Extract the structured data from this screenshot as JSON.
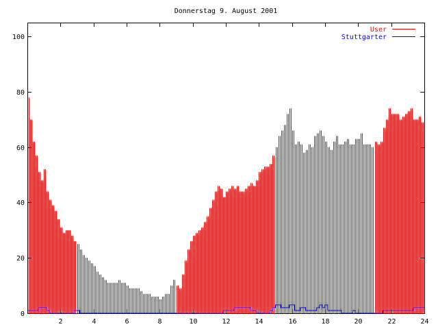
{
  "chart_data": {
    "type": "bar",
    "title": "Donnerstag 9. August 2001",
    "xlabel": "",
    "ylabel": "",
    "xlim": [
      0,
      24
    ],
    "ylim": [
      0,
      105
    ],
    "grid": false,
    "legend_position": "top-right",
    "x_ticks": [
      "2",
      "4",
      "6",
      "8",
      "10",
      "12",
      "14",
      "16",
      "18",
      "20",
      "22",
      "24"
    ],
    "y_ticks": [
      "0",
      "20",
      "40",
      "60",
      "80",
      "100"
    ],
    "x_step_hours": 0.16667,
    "series": [
      {
        "name": "User",
        "style": "impulses",
        "color": "#ff0000",
        "values": [
          78,
          70,
          62,
          57,
          51,
          48,
          52,
          44,
          41,
          39,
          37,
          34,
          31,
          29,
          30,
          30,
          28,
          26,
          25,
          23,
          21,
          20,
          19,
          18,
          17,
          15,
          14,
          13,
          12,
          11,
          11,
          11,
          11,
          12,
          11,
          11,
          10,
          9,
          9,
          9,
          9,
          8,
          7,
          7,
          7,
          6,
          6,
          6,
          5,
          6,
          7,
          7,
          10,
          12,
          10,
          9,
          14,
          19,
          23,
          26,
          28,
          29,
          30,
          31,
          33,
          35,
          38,
          41,
          44,
          46,
          45,
          42,
          44,
          45,
          46,
          45,
          46,
          44,
          44,
          45,
          46,
          47,
          46,
          48,
          51,
          52,
          53,
          53,
          54,
          57,
          60,
          64,
          66,
          68,
          72,
          74,
          66,
          61,
          62,
          61,
          58,
          59,
          61,
          60,
          64,
          65,
          66,
          64,
          62,
          60,
          59,
          62,
          64,
          61,
          61,
          62,
          63,
          61,
          61,
          63,
          63,
          65,
          61,
          61,
          61,
          60,
          62,
          61,
          62,
          67,
          70,
          74,
          72,
          72,
          72,
          70,
          71,
          72,
          73,
          74,
          70,
          70,
          71,
          69
        ]
      },
      {
        "name": "Stuttgarter",
        "style": "steps",
        "color": "#0000ff",
        "values": [
          1,
          1,
          1,
          1,
          2,
          2,
          2,
          1,
          0,
          0,
          0,
          0,
          0,
          0,
          0,
          0,
          0,
          1,
          1,
          0,
          0,
          0,
          0,
          0,
          0,
          0,
          0,
          0,
          0,
          0,
          0,
          0,
          0,
          0,
          0,
          0,
          0,
          0,
          0,
          0,
          0,
          0,
          0,
          0,
          0,
          0,
          0,
          0,
          0,
          0,
          0,
          0,
          0,
          0,
          0,
          0,
          0,
          0,
          0,
          0,
          0,
          0,
          0,
          0,
          0,
          0,
          0,
          0,
          0,
          0,
          0,
          1,
          1,
          1,
          1,
          2,
          2,
          2,
          2,
          2,
          2,
          1,
          1,
          0,
          0,
          0,
          0,
          0,
          1,
          2,
          3,
          3,
          2,
          2,
          2,
          3,
          3,
          1,
          1,
          2,
          2,
          1,
          1,
          1,
          1,
          2,
          3,
          2,
          3,
          1,
          1,
          1,
          1,
          1,
          0,
          0,
          0,
          0,
          1,
          0,
          0,
          0,
          0,
          0,
          0,
          0,
          0,
          0,
          0,
          1,
          1,
          1,
          1,
          1,
          1,
          1,
          1,
          1,
          1,
          1,
          2,
          2,
          2,
          2
        ]
      }
    ]
  }
}
